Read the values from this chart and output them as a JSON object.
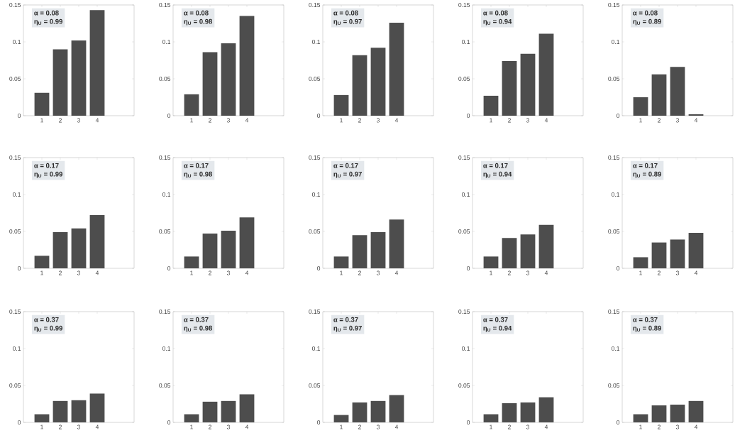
{
  "chart_data": [
    {
      "type": "bar",
      "x": [
        1,
        2,
        3,
        4
      ],
      "values": [
        0.031,
        0.09,
        0.102,
        0.143
      ],
      "color": "#4d4d4d",
      "xlim": [
        0,
        6
      ],
      "xticks": [
        1,
        2,
        3,
        4
      ],
      "ylim": [
        0,
        0.15
      ],
      "yticks": [
        0,
        0.05,
        0.1,
        0.15
      ],
      "annotations": [
        "α = 0.08",
        "η$_{U}$ = 0.99"
      ]
    },
    {
      "type": "bar",
      "x": [
        1,
        2,
        3,
        4
      ],
      "values": [
        0.029,
        0.086,
        0.098,
        0.135
      ],
      "color": "#4d4d4d",
      "xlim": [
        0,
        6
      ],
      "xticks": [
        1,
        2,
        3,
        4
      ],
      "ylim": [
        0,
        0.15
      ],
      "yticks": [
        0,
        0.05,
        0.1,
        0.15
      ],
      "annotations": [
        "α = 0.08",
        "η$_{U}$ = 0.98"
      ]
    },
    {
      "type": "bar",
      "x": [
        1,
        2,
        3,
        4
      ],
      "values": [
        0.028,
        0.082,
        0.092,
        0.126
      ],
      "color": "#4d4d4d",
      "xlim": [
        0,
        6
      ],
      "xticks": [
        1,
        2,
        3,
        4
      ],
      "ylim": [
        0,
        0.15
      ],
      "yticks": [
        0,
        0.05,
        0.1,
        0.15
      ],
      "annotations": [
        "α = 0.08",
        "η$_{U}$ = 0.97"
      ]
    },
    {
      "type": "bar",
      "x": [
        1,
        2,
        3,
        4
      ],
      "values": [
        0.027,
        0.074,
        0.084,
        0.111
      ],
      "color": "#4d4d4d",
      "xlim": [
        0,
        6
      ],
      "xticks": [
        1,
        2,
        3,
        4
      ],
      "ylim": [
        0,
        0.15
      ],
      "yticks": [
        0,
        0.05,
        0.1,
        0.15
      ],
      "annotations": [
        "α = 0.08",
        "η$_{U}$ = 0.94"
      ]
    },
    {
      "type": "bar",
      "x": [
        1,
        2,
        3,
        4
      ],
      "values": [
        0.025,
        0.056,
        0.066,
        0.002
      ],
      "color": "#4d4d4d",
      "xlim": [
        0,
        6
      ],
      "xticks": [
        1,
        2,
        3,
        4
      ],
      "ylim": [
        0,
        0.15
      ],
      "yticks": [
        0,
        0.05,
        0.1,
        0.15
      ],
      "annotations": [
        "α = 0.08",
        "η$_{U}$ = 0.89"
      ]
    },
    {
      "type": "bar",
      "x": [
        1,
        2,
        3,
        4
      ],
      "values": [
        0.017,
        0.049,
        0.054,
        0.072
      ],
      "color": "#4d4d4d",
      "xlim": [
        0,
        6
      ],
      "xticks": [
        1,
        2,
        3,
        4
      ],
      "ylim": [
        0,
        0.15
      ],
      "yticks": [
        0,
        0.05,
        0.1,
        0.15
      ],
      "annotations": [
        "α = 0.17",
        "η$_{U}$ = 0.99"
      ]
    },
    {
      "type": "bar",
      "x": [
        1,
        2,
        3,
        4
      ],
      "values": [
        0.016,
        0.047,
        0.051,
        0.069
      ],
      "color": "#4d4d4d",
      "xlim": [
        0,
        6
      ],
      "xticks": [
        1,
        2,
        3,
        4
      ],
      "ylim": [
        0,
        0.15
      ],
      "yticks": [
        0,
        0.05,
        0.1,
        0.15
      ],
      "annotations": [
        "α = 0.17",
        "η$_{U}$ = 0.98"
      ]
    },
    {
      "type": "bar",
      "x": [
        1,
        2,
        3,
        4
      ],
      "values": [
        0.016,
        0.045,
        0.049,
        0.066
      ],
      "color": "#4d4d4d",
      "xlim": [
        0,
        6
      ],
      "xticks": [
        1,
        2,
        3,
        4
      ],
      "ylim": [
        0,
        0.15
      ],
      "yticks": [
        0,
        0.05,
        0.1,
        0.15
      ],
      "annotations": [
        "α = 0.17",
        "η$_{U}$ = 0.97"
      ]
    },
    {
      "type": "bar",
      "x": [
        1,
        2,
        3,
        4
      ],
      "values": [
        0.016,
        0.041,
        0.046,
        0.059
      ],
      "color": "#4d4d4d",
      "xlim": [
        0,
        6
      ],
      "xticks": [
        1,
        2,
        3,
        4
      ],
      "ylim": [
        0,
        0.15
      ],
      "yticks": [
        0,
        0.05,
        0.1,
        0.15
      ],
      "annotations": [
        "α = 0.17",
        "η$_{U}$ = 0.94"
      ]
    },
    {
      "type": "bar",
      "x": [
        1,
        2,
        3,
        4
      ],
      "values": [
        0.015,
        0.035,
        0.039,
        0.048
      ],
      "color": "#4d4d4d",
      "xlim": [
        0,
        6
      ],
      "xticks": [
        1,
        2,
        3,
        4
      ],
      "ylim": [
        0,
        0.15
      ],
      "yticks": [
        0,
        0.05,
        0.1,
        0.15
      ],
      "annotations": [
        "α = 0.17",
        "η$_{U}$ = 0.89"
      ]
    },
    {
      "type": "bar",
      "x": [
        1,
        2,
        3,
        4
      ],
      "values": [
        0.011,
        0.029,
        0.03,
        0.039
      ],
      "color": "#4d4d4d",
      "xlim": [
        0,
        6
      ],
      "xticks": [
        1,
        2,
        3,
        4
      ],
      "ylim": [
        0,
        0.15
      ],
      "yticks": [
        0,
        0.05,
        0.1,
        0.15
      ],
      "annotations": [
        "α = 0.37",
        "η$_{U}$ = 0.99"
      ]
    },
    {
      "type": "bar",
      "x": [
        1,
        2,
        3,
        4
      ],
      "values": [
        0.011,
        0.028,
        0.029,
        0.038
      ],
      "color": "#4d4d4d",
      "xlim": [
        0,
        6
      ],
      "xticks": [
        1,
        2,
        3,
        4
      ],
      "ylim": [
        0,
        0.15
      ],
      "yticks": [
        0,
        0.05,
        0.1,
        0.15
      ],
      "annotations": [
        "α = 0.37",
        "η$_{U}$ = 0.98"
      ]
    },
    {
      "type": "bar",
      "x": [
        1,
        2,
        3,
        4
      ],
      "values": [
        0.01,
        0.027,
        0.029,
        0.037
      ],
      "color": "#4d4d4d",
      "xlim": [
        0,
        6
      ],
      "xticks": [
        1,
        2,
        3,
        4
      ],
      "ylim": [
        0,
        0.15
      ],
      "yticks": [
        0,
        0.05,
        0.1,
        0.15
      ],
      "annotations": [
        "α = 0.37",
        "η$_{U}$ = 0.97"
      ]
    },
    {
      "type": "bar",
      "x": [
        1,
        2,
        3,
        4
      ],
      "values": [
        0.011,
        0.026,
        0.027,
        0.034
      ],
      "color": "#4d4d4d",
      "xlim": [
        0,
        6
      ],
      "xticks": [
        1,
        2,
        3,
        4
      ],
      "ylim": [
        0,
        0.15
      ],
      "yticks": [
        0,
        0.05,
        0.1,
        0.15
      ],
      "annotations": [
        "α = 0.37",
        "η$_{U}$ = 0.94"
      ]
    },
    {
      "type": "bar",
      "x": [
        1,
        2,
        3,
        4
      ],
      "values": [
        0.011,
        0.023,
        0.024,
        0.029
      ],
      "color": "#4d4d4d",
      "xlim": [
        0,
        6
      ],
      "xticks": [
        1,
        2,
        3,
        4
      ],
      "ylim": [
        0,
        0.15
      ],
      "yticks": [
        0,
        0.05,
        0.1,
        0.15
      ],
      "annotations": [
        "α = 0.37",
        "η$_{U}$ = 0.89"
      ]
    }
  ]
}
